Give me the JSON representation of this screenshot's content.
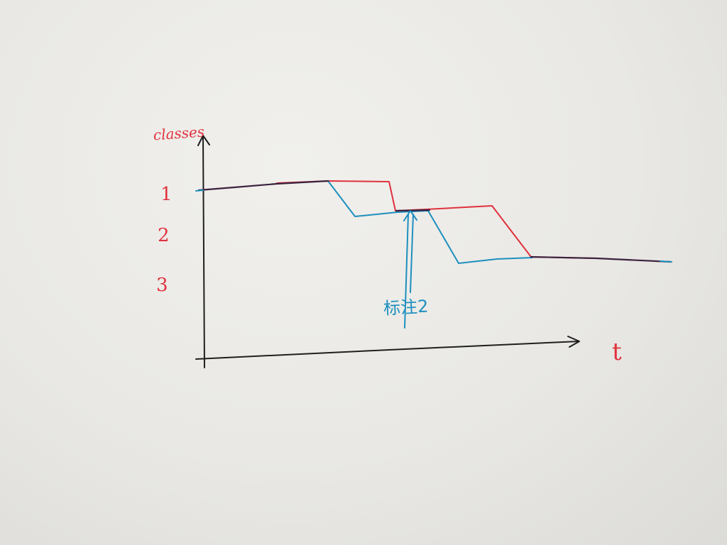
{
  "y_axis_label": "classes",
  "x_axis_label": "t",
  "y_tick_labels": [
    "1",
    "2",
    "3"
  ],
  "annotation_label": "标注2",
  "colors": {
    "paper": "#ebeae6",
    "axis_ink": "#1f1f1f",
    "red_ink": "#e0323f",
    "blue_ink": "#1e8fbf",
    "shared_ink": "#3a2240"
  }
}
